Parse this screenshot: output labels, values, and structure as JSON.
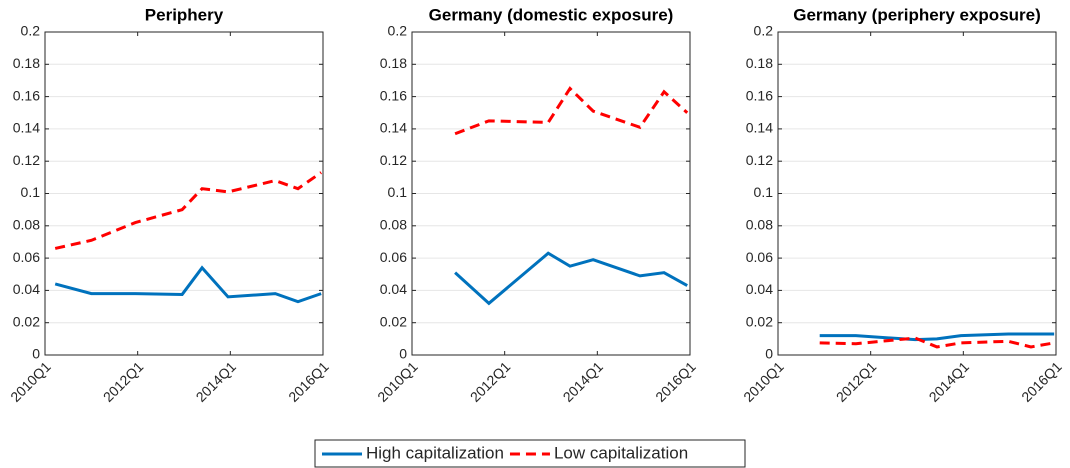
{
  "chart_data": [
    {
      "type": "line",
      "title": "Periphery",
      "xlim": [
        2010,
        2016
      ],
      "xticks": [
        {
          "value": 2010,
          "label": "2010Q1"
        },
        {
          "value": 2012,
          "label": "2012Q1"
        },
        {
          "value": 2014,
          "label": "2014Q1"
        },
        {
          "value": 2016,
          "label": "2016Q1"
        }
      ],
      "ylim": [
        0,
        0.2
      ],
      "yticks": [
        0,
        0.02,
        0.04,
        0.06,
        0.08,
        0.1,
        0.12,
        0.14,
        0.16,
        0.18,
        0.2
      ],
      "grid": true,
      "x": [
        2010.22,
        2011.0,
        2011.95,
        2012.96,
        2013.39,
        2013.95,
        2014.97,
        2015.46,
        2015.96
      ],
      "series": [
        {
          "name": "High capitalization",
          "color": "#0072bd",
          "line_style": "solid",
          "values": [
            0.044,
            0.038,
            0.038,
            0.0375,
            0.054,
            0.036,
            0.038,
            0.033,
            0.038
          ]
        },
        {
          "name": "Low capitalization",
          "color": "#ff0000",
          "line_style": "dashed",
          "values": [
            0.066,
            0.071,
            0.082,
            0.09,
            0.103,
            0.101,
            0.108,
            0.103,
            0.113
          ]
        }
      ]
    },
    {
      "type": "line",
      "title": "Germany (domestic exposure)",
      "xlim": [
        2010,
        2016
      ],
      "xticks": [
        {
          "value": 2010,
          "label": "2010Q1"
        },
        {
          "value": 2012,
          "label": "2012Q1"
        },
        {
          "value": 2014,
          "label": "2014Q1"
        },
        {
          "value": 2016,
          "label": "2016Q1"
        }
      ],
      "ylim": [
        0,
        0.2
      ],
      "yticks": [
        0,
        0.02,
        0.04,
        0.06,
        0.08,
        0.1,
        0.12,
        0.14,
        0.16,
        0.18,
        0.2
      ],
      "grid": true,
      "x": [
        2010.93,
        2011.66,
        2012.94,
        2013.41,
        2013.91,
        2014.92,
        2015.44,
        2015.94
      ],
      "series": [
        {
          "color": "#0072bd",
          "line_style": "solid",
          "values": [
            0.051,
            0.032,
            0.063,
            0.055,
            0.059,
            0.049,
            0.051,
            0.043
          ]
        },
        {
          "color": "#ff0000",
          "line_style": "dashed",
          "values": [
            0.137,
            0.145,
            0.144,
            0.165,
            0.151,
            0.141,
            0.163,
            0.15
          ]
        }
      ]
    },
    {
      "type": "line",
      "title": "Germany (periphery exposure)",
      "xlim": [
        2010,
        2016
      ],
      "xticks": [
        {
          "value": 2010,
          "label": "2010Q1"
        },
        {
          "value": 2012,
          "label": "2012Q1"
        },
        {
          "value": 2014,
          "label": "2014Q1"
        },
        {
          "value": 2016,
          "label": "2016Q1"
        }
      ],
      "ylim": [
        0,
        0.2
      ],
      "yticks": [
        0,
        0.02,
        0.04,
        0.06,
        0.08,
        0.1,
        0.12,
        0.14,
        0.16,
        0.18,
        0.2
      ],
      "grid": true,
      "x": [
        2010.9,
        2011.68,
        2012.96,
        2013.43,
        2013.95,
        2014.97,
        2015.46,
        2015.96
      ],
      "series": [
        {
          "color": "#0072bd",
          "line_style": "solid",
          "values": [
            0.012,
            0.012,
            0.0095,
            0.01,
            0.012,
            0.013,
            0.013,
            0.013
          ]
        },
        {
          "color": "#ff0000",
          "line_style": "dashed",
          "values": [
            0.0075,
            0.007,
            0.0105,
            0.005,
            0.0075,
            0.0085,
            0.005,
            0.0075
          ]
        }
      ]
    }
  ]
}
